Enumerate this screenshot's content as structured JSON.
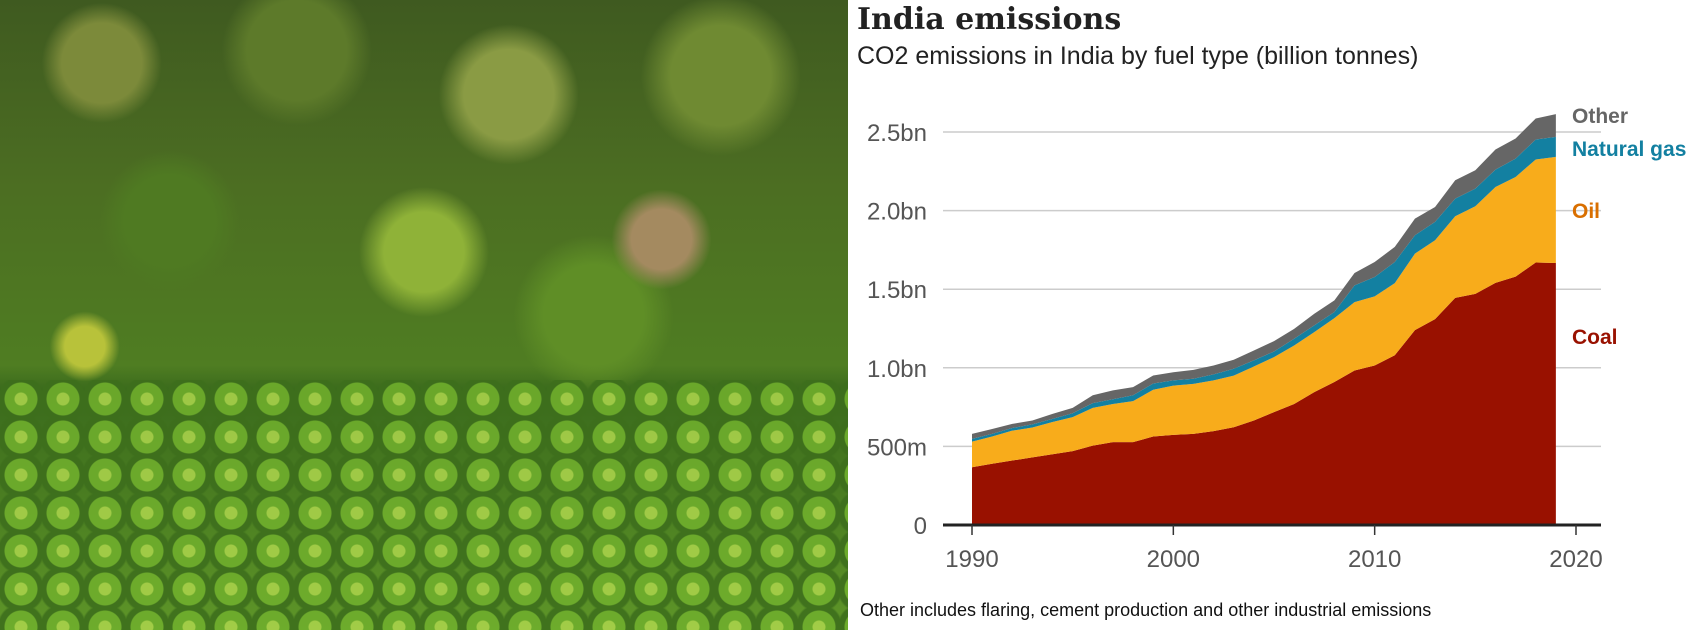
{
  "chart_data": {
    "type": "area",
    "stacked": true,
    "title": "India emissions",
    "subtitle": "CO2 emissions in India by fuel type (billion tonnes)",
    "footnote": "Other includes flaring, cement production and other industrial emissions",
    "x": [
      1990,
      1991,
      1992,
      1993,
      1994,
      1995,
      1996,
      1997,
      1998,
      1999,
      2000,
      2001,
      2002,
      2003,
      2004,
      2005,
      2006,
      2007,
      2008,
      2009,
      2010,
      2011,
      2012,
      2013,
      2014,
      2015,
      2016,
      2017,
      2018,
      2019
    ],
    "unit": "billion tonnes",
    "series": [
      {
        "name": "Coal",
        "color": "#991100",
        "values": [
          0.367,
          0.39,
          0.41,
          0.43,
          0.45,
          0.47,
          0.505,
          0.527,
          0.527,
          0.563,
          0.573,
          0.58,
          0.597,
          0.622,
          0.665,
          0.718,
          0.77,
          0.845,
          0.91,
          0.983,
          1.015,
          1.08,
          1.24,
          1.31,
          1.445,
          1.47,
          1.54,
          1.58,
          1.67,
          1.667
        ]
      },
      {
        "name": "Oil",
        "color": "#f8ac1b",
        "label_color": "#d96f00",
        "values": [
          0.163,
          0.173,
          0.19,
          0.19,
          0.205,
          0.216,
          0.24,
          0.243,
          0.261,
          0.297,
          0.314,
          0.318,
          0.323,
          0.328,
          0.343,
          0.35,
          0.372,
          0.382,
          0.406,
          0.435,
          0.439,
          0.459,
          0.486,
          0.501,
          0.519,
          0.558,
          0.61,
          0.634,
          0.655,
          0.675
        ]
      },
      {
        "name": "Natural gas",
        "color": "#1380a1",
        "values": [
          0.018,
          0.017,
          0.017,
          0.02,
          0.02,
          0.025,
          0.03,
          0.03,
          0.037,
          0.04,
          0.033,
          0.032,
          0.038,
          0.044,
          0.039,
          0.036,
          0.043,
          0.043,
          0.039,
          0.106,
          0.124,
          0.134,
          0.117,
          0.117,
          0.112,
          0.112,
          0.111,
          0.117,
          0.127,
          0.127
        ]
      },
      {
        "name": "Other",
        "color": "#666666",
        "values": [
          0.032,
          0.031,
          0.026,
          0.025,
          0.032,
          0.034,
          0.05,
          0.056,
          0.052,
          0.051,
          0.052,
          0.057,
          0.057,
          0.057,
          0.063,
          0.066,
          0.063,
          0.074,
          0.074,
          0.079,
          0.095,
          0.096,
          0.106,
          0.095,
          0.117,
          0.117,
          0.128,
          0.128,
          0.134,
          0.145
        ]
      }
    ],
    "yticks": [
      {
        "v": 0,
        "label": "0"
      },
      {
        "v": 0.5,
        "label": "500m"
      },
      {
        "v": 1.0,
        "label": "1.0bn"
      },
      {
        "v": 1.5,
        "label": "1.5bn"
      },
      {
        "v": 2.0,
        "label": "2.0bn"
      },
      {
        "v": 2.5,
        "label": "2.5bn"
      }
    ],
    "xticks": [
      {
        "v": 1990,
        "label": "1990"
      },
      {
        "v": 2000,
        "label": "2000"
      },
      {
        "v": 2010,
        "label": "2010"
      },
      {
        "v": 2020,
        "label": "2020"
      }
    ],
    "ylim": [
      0,
      2.5
    ],
    "xlim": [
      1990,
      2020
    ],
    "grid": true,
    "legend": "right, inline labels"
  }
}
